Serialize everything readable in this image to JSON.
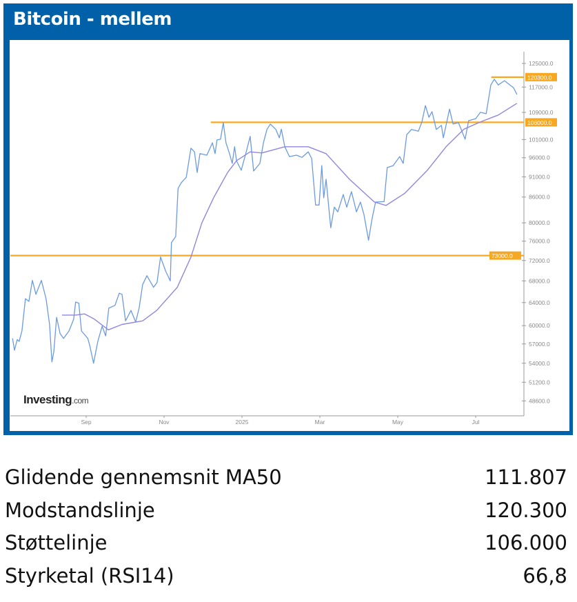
{
  "title": "Bitcoin - mellem",
  "logo": {
    "brand": "Investing",
    "suffix": ".com"
  },
  "colors": {
    "frame": "#0061a8",
    "price": "#6a9ae0",
    "ma": "#8f86e0",
    "level": "#f7a823",
    "axis": "#999999"
  },
  "chart_data": {
    "type": "line",
    "title": "Bitcoin - mellem",
    "yscale": "log",
    "ylim": [
      47000,
      130000
    ],
    "xlim": [
      -0.95,
      12.1
    ],
    "x_unit": "months since 2024-08-01",
    "xticks": [
      {
        "x": 1,
        "label": "Sep"
      },
      {
        "x": 3,
        "label": "Nov"
      },
      {
        "x": 5,
        "label": "2025"
      },
      {
        "x": 7,
        "label": "Mar"
      },
      {
        "x": 9,
        "label": "May"
      },
      {
        "x": 11,
        "label": "Jul"
      }
    ],
    "yticks": [
      "125000.0",
      "117000.0",
      "109000.0",
      "101000.0",
      "96000.0",
      "91000.0",
      "86000.0",
      "80000.0",
      "76000.0",
      "72000.0",
      "68000.0",
      "64000.0",
      "60000.0",
      "57000.0",
      "54000.0",
      "51200.0",
      "48600.0"
    ],
    "levels": [
      {
        "name": "Modstandslinje",
        "value": 120300,
        "label": "120300.0",
        "from_x": 11.4
      },
      {
        "name": "Støttelinje",
        "value": 106000,
        "label": "106000.0",
        "from_x": 4.2
      },
      {
        "name": "Støtte",
        "value": 73000,
        "label": "73000.0",
        "from_x": -0.95
      }
    ],
    "series": [
      {
        "name": "Bitcoin",
        "x": [
          -0.89,
          -0.84,
          -0.77,
          -0.72,
          -0.65,
          -0.56,
          -0.47,
          -0.38,
          -0.29,
          -0.15,
          -0.03,
          0.06,
          0.12,
          0.17,
          0.24,
          0.33,
          0.42,
          0.56,
          0.68,
          0.73,
          0.81,
          0.88,
          1.04,
          1.09,
          1.19,
          1.3,
          1.41,
          1.5,
          1.58,
          1.74,
          1.85,
          1.92,
          2.01,
          2.15,
          2.27,
          2.36,
          2.45,
          2.56,
          2.73,
          2.82,
          2.91,
          3.04,
          3.16,
          3.19,
          3.3,
          3.36,
          3.44,
          3.57,
          3.69,
          3.78,
          3.85,
          3.92,
          4.1,
          4.24,
          4.31,
          4.36,
          4.45,
          4.52,
          4.59,
          4.68,
          4.75,
          4.81,
          4.86,
          4.98,
          5.11,
          5.21,
          5.3,
          5.46,
          5.55,
          5.64,
          5.73,
          5.87,
          5.96,
          6.01,
          6.1,
          6.22,
          6.4,
          6.54,
          6.7,
          6.79,
          6.89,
          6.98,
          7.05,
          7.1,
          7.16,
          7.28,
          7.37,
          7.46,
          7.6,
          7.69,
          7.81,
          7.94,
          8.04,
          8.13,
          8.25,
          8.34,
          8.43,
          8.65,
          8.73,
          8.88,
          9.05,
          9.14,
          9.23,
          9.35,
          9.53,
          9.62,
          9.71,
          9.8,
          9.88,
          9.99,
          10.12,
          10.17,
          10.33,
          10.42,
          10.56,
          10.73,
          10.82,
          11.0,
          11.12,
          11.27,
          11.39,
          11.48,
          11.58,
          11.74,
          11.88,
          11.97,
          12.06
        ],
        "y": [
          57900,
          56000,
          57700,
          57400,
          59100,
          64700,
          64200,
          68100,
          65500,
          68100,
          64700,
          60200,
          54200,
          55800,
          61400,
          58700,
          57900,
          59100,
          61100,
          64100,
          63900,
          59100,
          57900,
          56800,
          54000,
          57400,
          59900,
          58300,
          63000,
          63500,
          65700,
          65500,
          60800,
          62600,
          60600,
          63000,
          67300,
          69000,
          66800,
          67700,
          72700,
          69900,
          68000,
          75700,
          77000,
          88100,
          89500,
          90900,
          98600,
          97600,
          92100,
          97100,
          96700,
          100100,
          97100,
          100900,
          101100,
          105900,
          100100,
          97100,
          94500,
          99000,
          95200,
          92700,
          97600,
          101900,
          92500,
          94500,
          100100,
          103900,
          105500,
          103900,
          101500,
          104000,
          99000,
          96300,
          96700,
          96100,
          97600,
          95800,
          84100,
          84100,
          93900,
          85800,
          90400,
          78900,
          83600,
          82500,
          86600,
          83600,
          87300,
          82500,
          84800,
          82000,
          76200,
          80900,
          84800,
          84900,
          93400,
          93900,
          96300,
          94500,
          102400,
          103900,
          103400,
          106100,
          111100,
          107500,
          109200,
          103900,
          105100,
          101500,
          110000,
          105500,
          105900,
          101100,
          106500,
          107100,
          109000,
          108600,
          117700,
          119600,
          117700,
          119100,
          117700,
          116800,
          114600
        ]
      },
      {
        "name": "MA50",
        "x": [
          0.38,
          0.73,
          0.96,
          1.21,
          1.57,
          1.92,
          2.45,
          2.81,
          3.34,
          3.69,
          3.97,
          4.27,
          4.63,
          4.86,
          5.21,
          5.51,
          6.1,
          6.7,
          7.16,
          7.76,
          8.4,
          8.7,
          9.18,
          9.76,
          10.24,
          10.7,
          11.12,
          11.58,
          12.06
        ],
        "y": [
          61800,
          61800,
          62000,
          61100,
          59300,
          60200,
          60800,
          62600,
          66800,
          72700,
          80000,
          85800,
          92100,
          95200,
          97600,
          97300,
          99000,
          99000,
          97100,
          90400,
          84800,
          84000,
          86900,
          92700,
          99000,
          104000,
          106100,
          108200,
          111800
        ]
      }
    ]
  },
  "stats": [
    {
      "label": "Glidende gennemsnit MA50",
      "value": "111.807"
    },
    {
      "label": "Modstandslinje",
      "value": "120.300"
    },
    {
      "label": "Støttelinje",
      "value": "106.000"
    },
    {
      "label": "Styrketal (RSI14)",
      "value": "66,8"
    }
  ]
}
